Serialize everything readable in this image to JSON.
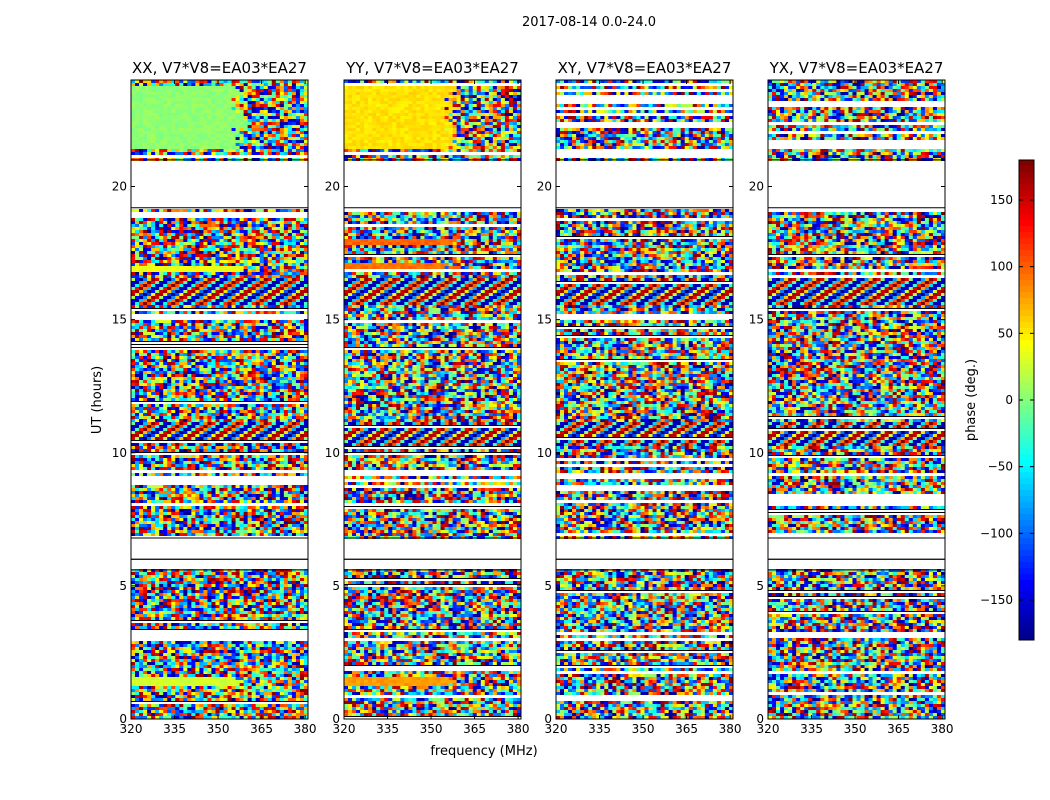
{
  "figure": {
    "suptitle": "2017-08-14 0.0-24.0",
    "colorbar_label": "phase (deg.)",
    "colorbar_ticks": [
      150,
      100,
      50,
      0,
      -50,
      -100,
      -150
    ],
    "colorbar_range": [
      -180,
      180
    ],
    "colormap": "jet"
  },
  "chart_data": [
    {
      "type": "heatmap",
      "title": "XX, V7*V8=EA03*EA27",
      "xlabel": "",
      "ylabel": "UT (hours)",
      "xlim": [
        320,
        381
      ],
      "ylim": [
        0,
        24
      ],
      "xticks": [
        320,
        335,
        350,
        365,
        380
      ],
      "yticks": [
        0,
        5,
        10,
        15,
        20
      ],
      "value_range": [
        -180,
        180
      ],
      "noise_ranges_ut": [
        [
          0.0,
          0.7
        ],
        [
          1.0,
          1.7
        ],
        [
          1.9,
          2.9
        ],
        [
          3.3,
          5.6
        ],
        [
          7.0,
          8.0
        ],
        [
          9.8,
          10.7
        ],
        [
          11.2,
          14.9
        ],
        [
          15.2,
          16.6
        ],
        [
          16.9,
          17.6
        ],
        [
          17.6,
          18.5
        ]
      ],
      "fringe_ranges_ut": [
        [
          10.2,
          11.1
        ],
        [
          15.6,
          16.6
        ]
      ],
      "dominant_bands": [
        {
          "ut_range": [
            1.2,
            1.6
          ],
          "phase_deg": 30
        },
        {
          "ut_range": [
            16.8,
            17.0
          ],
          "phase_deg": 40
        },
        {
          "ut_range": [
            21.4,
            23.8
          ],
          "phase_deg": 5
        }
      ],
      "blank_ranges_ut": [
        [
          5.6,
          6.0
        ],
        [
          6.0,
          6.8
        ],
        [
          19.2,
          21.0
        ]
      ]
    },
    {
      "type": "heatmap",
      "title": "YY, V7*V8=EA03*EA27",
      "xlabel": "frequency (MHz)",
      "ylabel": "",
      "xlim": [
        320,
        381
      ],
      "ylim": [
        0,
        24
      ],
      "xticks": [
        320,
        335,
        350,
        365,
        380
      ],
      "yticks": [
        0,
        5,
        10,
        15,
        20
      ],
      "value_range": [
        -180,
        180
      ],
      "noise_ranges_ut": [
        [
          0.0,
          0.7
        ],
        [
          1.0,
          1.7
        ],
        [
          1.9,
          2.9
        ],
        [
          3.3,
          5.6
        ],
        [
          7.0,
          8.0
        ],
        [
          9.8,
          10.7
        ],
        [
          11.2,
          14.9
        ],
        [
          15.2,
          16.6
        ],
        [
          16.9,
          17.6
        ],
        [
          17.6,
          18.5
        ]
      ],
      "fringe_ranges_ut": [
        [
          10.2,
          11.1
        ],
        [
          15.6,
          16.6
        ]
      ],
      "dominant_bands": [
        {
          "ut_range": [
            1.2,
            1.6
          ],
          "phase_deg": 80
        },
        {
          "ut_range": [
            16.9,
            17.1
          ],
          "phase_deg": 95
        },
        {
          "ut_range": [
            17.8,
            18.0
          ],
          "phase_deg": 100
        },
        {
          "ut_range": [
            21.4,
            23.8
          ],
          "phase_deg": 55
        }
      ],
      "blank_ranges_ut": [
        [
          5.6,
          6.0
        ],
        [
          6.0,
          6.8
        ],
        [
          19.2,
          21.0
        ]
      ]
    },
    {
      "type": "heatmap",
      "title": "XY, V7*V8=EA03*EA27",
      "xlabel": "",
      "ylabel": "",
      "xlim": [
        320,
        381
      ],
      "ylim": [
        0,
        24
      ],
      "xticks": [
        320,
        335,
        350,
        365,
        380
      ],
      "yticks": [
        0,
        5,
        10,
        15,
        20
      ],
      "value_range": [
        -180,
        180
      ],
      "noise_ranges_ut": [
        [
          0.0,
          0.7
        ],
        [
          1.0,
          1.7
        ],
        [
          1.9,
          2.9
        ],
        [
          3.3,
          5.6
        ],
        [
          7.0,
          8.0
        ],
        [
          9.8,
          10.7
        ],
        [
          11.2,
          14.9
        ],
        [
          15.2,
          16.6
        ],
        [
          16.9,
          17.6
        ],
        [
          17.6,
          18.5
        ]
      ],
      "fringe_ranges_ut": [
        [
          10.2,
          11.1
        ],
        [
          15.6,
          16.6
        ]
      ],
      "dominant_bands": [],
      "blank_ranges_ut": [
        [
          5.6,
          6.0
        ],
        [
          6.0,
          6.8
        ],
        [
          19.2,
          21.0
        ]
      ]
    },
    {
      "type": "heatmap",
      "title": "YX, V7*V8=EA03*EA27",
      "xlabel": "",
      "ylabel": "",
      "xlim": [
        320,
        381
      ],
      "ylim": [
        0,
        24
      ],
      "xticks": [
        320,
        335,
        350,
        365,
        380
      ],
      "yticks": [
        0,
        5,
        10,
        15,
        20
      ],
      "value_range": [
        -180,
        180
      ],
      "noise_ranges_ut": [
        [
          0.0,
          0.7
        ],
        [
          1.0,
          1.7
        ],
        [
          1.9,
          2.9
        ],
        [
          3.3,
          5.6
        ],
        [
          7.0,
          8.0
        ],
        [
          9.8,
          10.7
        ],
        [
          11.2,
          14.9
        ],
        [
          15.2,
          16.6
        ],
        [
          16.9,
          17.6
        ],
        [
          17.6,
          18.5
        ]
      ],
      "fringe_ranges_ut": [
        [
          10.2,
          11.1
        ],
        [
          15.6,
          16.6
        ]
      ],
      "dominant_bands": [],
      "blank_ranges_ut": [
        [
          5.6,
          6.0
        ],
        [
          6.0,
          6.8
        ],
        [
          19.2,
          21.0
        ]
      ]
    }
  ]
}
